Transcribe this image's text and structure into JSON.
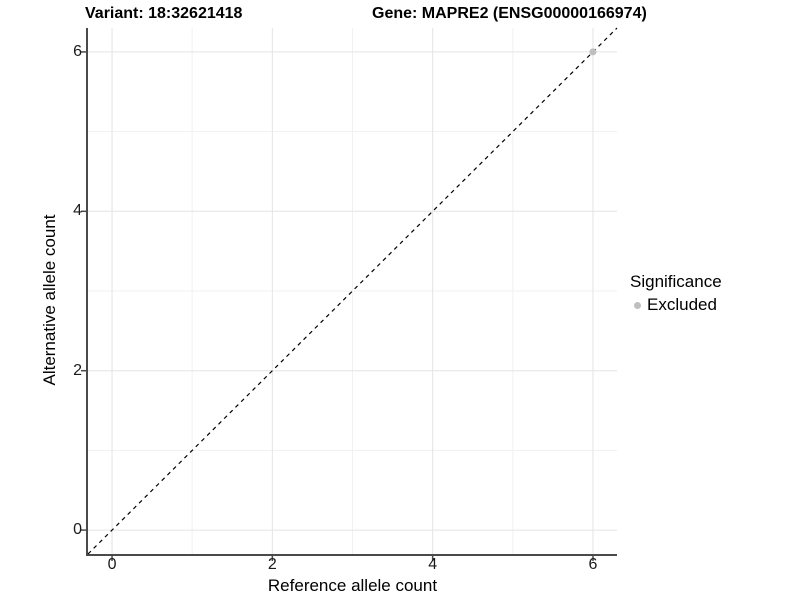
{
  "title": {
    "variant": "Variant: 18:32621418",
    "gene": "Gene: MAPRE2 (ENSG00000166974)"
  },
  "legend": {
    "title": "Significance",
    "items": [
      {
        "label": "Excluded",
        "color": "#bfbfbf"
      }
    ]
  },
  "chart_data": {
    "type": "scatter",
    "title": "",
    "xlabel": "Reference allele count",
    "ylabel": "Alternative allele count",
    "xlim": [
      -0.3,
      6.3
    ],
    "ylim": [
      -0.3,
      6.3
    ],
    "major_ticks": [
      0,
      2,
      4,
      6
    ],
    "minor_gridlines": [
      1,
      3,
      5
    ],
    "grid": true,
    "legend_position": "right",
    "identity_line": {
      "style": "dashed",
      "from": [
        -0.3,
        -0.3
      ],
      "to": [
        6.3,
        6.3
      ],
      "color": "#000000"
    },
    "series": [
      {
        "name": "Excluded",
        "color": "#bfbfbf",
        "points": [
          [
            6,
            6
          ]
        ]
      }
    ],
    "colors": {
      "major_grid": "#e4e4e4",
      "minor_grid": "#f1f1f1",
      "axis_line": "#4a4a4a",
      "background": "#ffffff"
    }
  }
}
